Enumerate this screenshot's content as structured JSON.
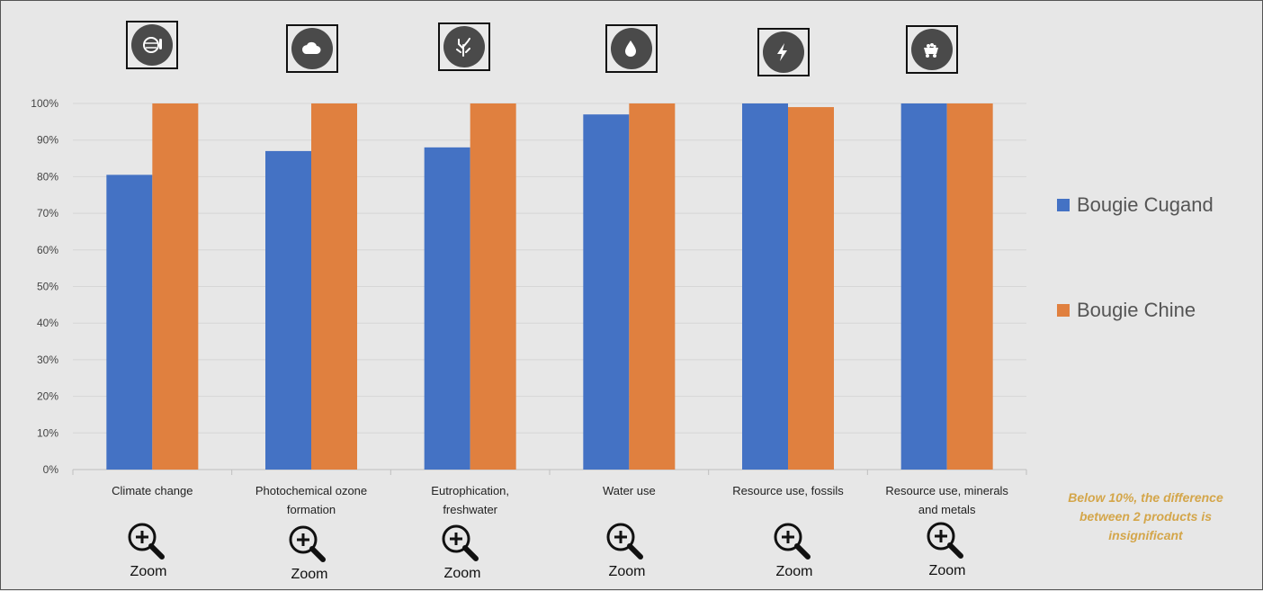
{
  "chart_data": {
    "type": "bar",
    "categories": [
      "Climate change",
      "Photochemical ozone formation",
      "Eutrophication, freshwater",
      "Water use",
      "Resource use, fossils",
      "Resource use, minerals and metals"
    ],
    "category_label_lines": [
      [
        "Climate change"
      ],
      [
        "Photochemical ozone",
        "formation"
      ],
      [
        "Eutrophication,",
        "freshwater"
      ],
      [
        "Water use"
      ],
      [
        "Resource use, fossils"
      ],
      [
        "Resource use, minerals",
        "and metals"
      ]
    ],
    "series": [
      {
        "name": "Bougie Cugand",
        "color": "#4472c4",
        "values": [
          80.5,
          87,
          88,
          97,
          100,
          100
        ]
      },
      {
        "name": "Bougie Chine",
        "color": "#e0803f",
        "values": [
          100,
          100,
          100,
          100,
          99,
          100
        ]
      }
    ],
    "ylim": [
      0,
      100
    ],
    "yticks": [
      "0%",
      "10%",
      "20%",
      "30%",
      "40%",
      "50%",
      "60%",
      "70%",
      "80%",
      "90%",
      "100%"
    ],
    "grid": true,
    "legend_position": "right"
  },
  "category_icons": [
    "globe-thermometer-icon",
    "cloud-icon",
    "coral-icon",
    "water-drop-icon",
    "lightning-bolt-icon",
    "mine-cart-icon"
  ],
  "zoom_label": "Zoom",
  "note": "Below 10%, the difference between 2 products is insignificant"
}
